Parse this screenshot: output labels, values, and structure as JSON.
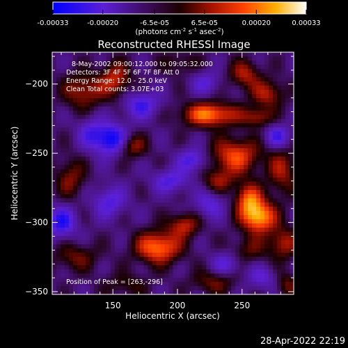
{
  "chart_data": {
    "type": "heatmap",
    "title": "Reconstructed RHESSI Image",
    "xlabel": "Heliocentric X (arcsec)",
    "ylabel": "Heliocentric Y (arcsec)",
    "xlim": [
      103,
      290
    ],
    "ylim": [
      -352,
      -177
    ],
    "x_ticks": [
      150,
      200,
      250
    ],
    "y_ticks": [
      -200,
      -250,
      -300,
      -350
    ],
    "colorbar": {
      "ticks": [
        "-0.00033",
        "-0.00020",
        "-6.5e-05",
        "6.5e-05",
        "0.00020",
        "0.00033"
      ],
      "range": [
        -0.00033,
        0.00033
      ],
      "unit_prefix": "(photons cm",
      "unit_exp1": "-2",
      "unit_mid": " s",
      "unit_exp2": "-1",
      "unit_mid2": " asec",
      "unit_exp3": "-2",
      "unit_suffix": ")"
    },
    "colormap": [
      "#0000ff",
      "#7a2bd0",
      "#3a0a3a",
      "#8a1000",
      "#ff3a00",
      "#ffc000",
      "#ffffff"
    ],
    "annotations": [
      "8-May-2002 09:00:12.000 to 09:05:32.000",
      "Detectors: 3F 4F 5F 6F 7F 8F  Att 0",
      "Energy Range: 12.0 - 25.0 keV",
      "Clean    Total counts: 3.07E+03",
      "Position of Peak = [263,-296]"
    ],
    "peak": [
      263,
      -296
    ],
    "blobs": [
      {
        "x": 263,
        "y": -296,
        "amp": 1.0,
        "sx": 9,
        "sy": 8
      },
      {
        "x": 255,
        "y": -283,
        "amp": 0.7,
        "sx": 7,
        "sy": 8
      },
      {
        "x": 185,
        "y": -318,
        "amp": 0.85,
        "sx": 12,
        "sy": 8
      },
      {
        "x": 205,
        "y": -302,
        "amp": 0.55,
        "sx": 8,
        "sy": 6
      },
      {
        "x": 225,
        "y": -222,
        "amp": 0.85,
        "sx": 15,
        "sy": 6
      },
      {
        "x": 262,
        "y": -224,
        "amp": 0.45,
        "sx": 8,
        "sy": 5
      },
      {
        "x": 245,
        "y": -252,
        "amp": 0.7,
        "sx": 13,
        "sy": 9
      },
      {
        "x": 165,
        "y": -245,
        "amp": 0.45,
        "sx": 8,
        "sy": 6
      },
      {
        "x": 152,
        "y": -197,
        "amp": 0.55,
        "sx": 8,
        "sy": 9
      },
      {
        "x": 127,
        "y": -205,
        "amp": 0.5,
        "sx": 11,
        "sy": 9
      },
      {
        "x": 252,
        "y": -193,
        "amp": 0.5,
        "sx": 8,
        "sy": 7
      },
      {
        "x": 270,
        "y": -207,
        "amp": 0.5,
        "sx": 9,
        "sy": 7
      },
      {
        "x": 281,
        "y": -263,
        "amp": 0.45,
        "sx": 8,
        "sy": 12
      },
      {
        "x": 282,
        "y": -315,
        "amp": 0.5,
        "sx": 8,
        "sy": 8
      },
      {
        "x": 255,
        "y": -320,
        "amp": 0.3,
        "sx": 10,
        "sy": 7
      },
      {
        "x": 232,
        "y": -270,
        "amp": 0.4,
        "sx": 9,
        "sy": 6
      },
      {
        "x": 117,
        "y": -268,
        "amp": 0.4,
        "sx": 8,
        "sy": 10
      },
      {
        "x": 121,
        "y": -325,
        "amp": 0.35,
        "sx": 12,
        "sy": 7
      },
      {
        "x": 228,
        "y": -343,
        "amp": 0.35,
        "sx": 12,
        "sy": 6
      },
      {
        "x": 160,
        "y": -345,
        "amp": 0.25,
        "sx": 12,
        "sy": 6
      },
      {
        "x": 285,
        "y": -345,
        "amp": 0.35,
        "sx": 6,
        "sy": 6
      },
      {
        "x": 202,
        "y": -185,
        "amp": 0.25,
        "sx": 10,
        "sy": 6
      },
      {
        "x": 148,
        "y": -240,
        "amp": -0.75,
        "sx": 9,
        "sy": 8
      },
      {
        "x": 172,
        "y": -215,
        "amp": -0.5,
        "sx": 10,
        "sy": 7
      },
      {
        "x": 212,
        "y": -255,
        "amp": -0.5,
        "sx": 8,
        "sy": 6
      },
      {
        "x": 110,
        "y": -300,
        "amp": -0.6,
        "sx": 8,
        "sy": 8
      },
      {
        "x": 195,
        "y": -270,
        "amp": -0.45,
        "sx": 10,
        "sy": 6
      },
      {
        "x": 278,
        "y": -238,
        "amp": -0.5,
        "sx": 7,
        "sy": 6
      },
      {
        "x": 147,
        "y": -285,
        "amp": -0.45,
        "sx": 9,
        "sy": 8
      },
      {
        "x": 225,
        "y": -287,
        "amp": -0.4,
        "sx": 8,
        "sy": 7
      },
      {
        "x": 238,
        "y": -330,
        "amp": -0.4,
        "sx": 8,
        "sy": 6
      },
      {
        "x": 265,
        "y": -340,
        "amp": -0.35,
        "sx": 8,
        "sy": 6
      },
      {
        "x": 222,
        "y": -199,
        "amp": -0.35,
        "sx": 8,
        "sy": 6
      },
      {
        "x": 132,
        "y": -235,
        "amp": -0.35,
        "sx": 7,
        "sy": 8
      }
    ],
    "baseline": -0.22
  },
  "footer": {
    "timestamp": "28-Apr-2022 22:19"
  }
}
